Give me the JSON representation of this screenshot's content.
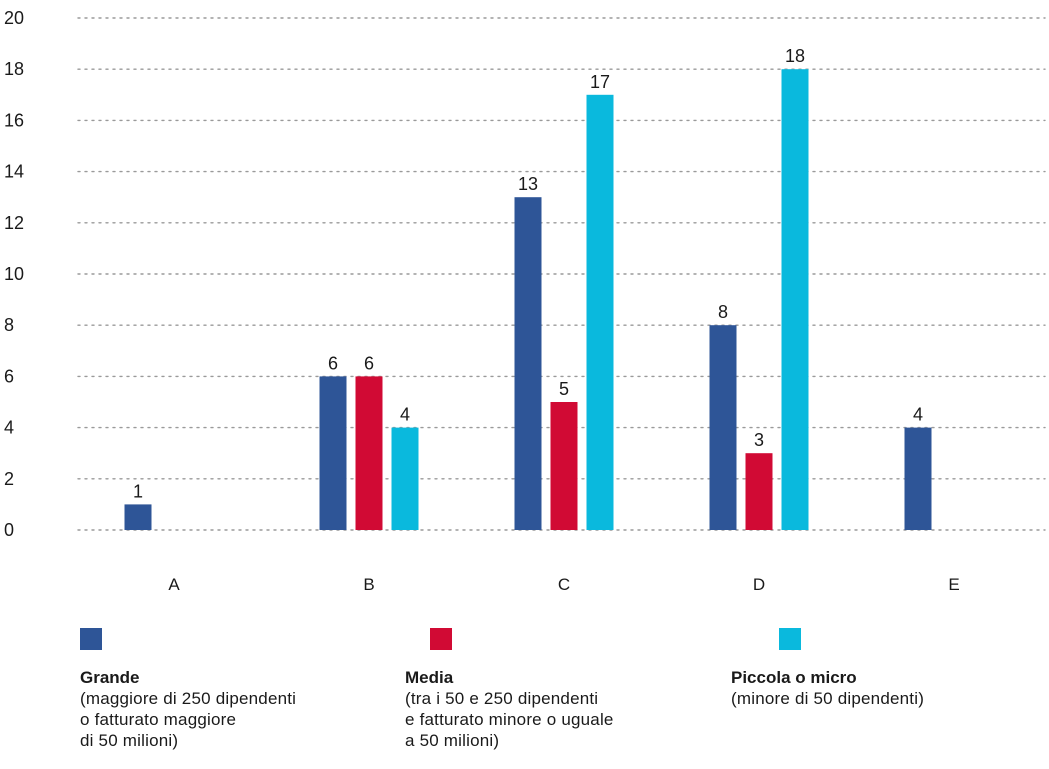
{
  "chart_data": {
    "type": "bar",
    "categories": [
      "A",
      "B",
      "C",
      "D",
      "E"
    ],
    "series": [
      {
        "name": "Grande",
        "color": "#2e5597",
        "values": [
          1,
          6,
          13,
          8,
          4
        ]
      },
      {
        "name": "Media",
        "color": "#d10a34",
        "values": [
          null,
          6,
          5,
          3,
          null
        ]
      },
      {
        "name": "Piccola o micro",
        "color": "#0ab9dd",
        "values": [
          null,
          4,
          17,
          18,
          null
        ]
      }
    ],
    "ylim": [
      0,
      20
    ],
    "yticks": [
      0,
      2,
      4,
      6,
      8,
      10,
      12,
      14,
      16,
      18,
      20
    ],
    "grid": true,
    "legend_position": "bottom"
  },
  "legend": [
    {
      "title": "Grande",
      "desc": "(maggiore di 250 dipendenti\no fatturato maggiore\ndi 50 milioni)",
      "color": "#2e5597"
    },
    {
      "title": "Media",
      "desc": "(tra i 50 e 250 dipendenti\ne fatturato minore o uguale\na 50 milioni)",
      "color": "#d10a34"
    },
    {
      "title": "Piccola o micro",
      "desc": "(minore di 50 dipendenti)",
      "color": "#0ab9dd"
    }
  ]
}
